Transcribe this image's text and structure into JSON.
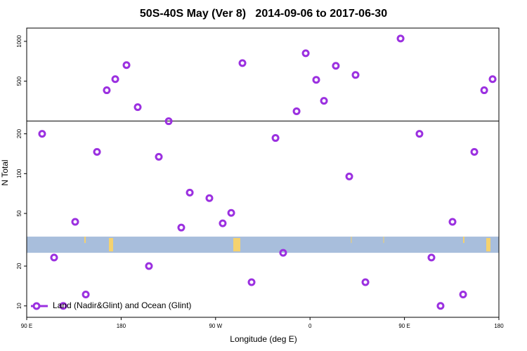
{
  "chart_data": {
    "type": "scatter",
    "title": "50S-40S May (Ver 8)   2014-09-06 to 2017-06-30",
    "xlabel": "Longitude (deg E)",
    "ylabel": "N Total",
    "xlim": [
      90,
      540
    ],
    "xticks": [
      {
        "value": 90,
        "label": "90 E"
      },
      180,
      {
        "value": 270,
        "label": "90 W"
      },
      {
        "value": 360,
        "label": "0"
      },
      {
        "value": 450,
        "label": "90 E"
      },
      {
        "value": 540,
        "label": "180"
      }
    ],
    "ylim": [
      8.2,
      1260
    ],
    "ylog": true,
    "yticks": [
      10,
      20,
      50,
      100,
      200,
      500,
      1000
    ],
    "divider": 250,
    "map_band": {
      "ylim": [
        25.2,
        33.4
      ],
      "color": "#a8bedc",
      "land_color": "#f5d26e"
    },
    "legend": "bottom-left",
    "series": [
      {
        "name": "Land (Nadir&Glint) and Ocean (Glint)",
        "color": "#9b30e0",
        "x": [
          104.7,
          116.1,
          124.8,
          136.2,
          146.3,
          157,
          166.3,
          174.4,
          185.1,
          195.8,
          206.5,
          215.9,
          225.3,
          237.3,
          245.4,
          264.1,
          276.8,
          284.9,
          295.6,
          304.3,
          327.1,
          334.4,
          347.2,
          355.9,
          365.9,
          373.3,
          384.6,
          397.4,
          403.4,
          412.8,
          446.3,
          464.3,
          475.7,
          484.4,
          495.8,
          505.9,
          516.6,
          526,
          534
        ],
        "values": [
          200,
          23.2,
          10,
          43.2,
          12.2,
          146,
          427,
          518,
          661,
          318,
          20,
          134,
          249,
          39.1,
          71.9,
          65.3,
          42.1,
          50.5,
          685,
          15.1,
          186,
          25.2,
          296,
          813,
          512,
          355,
          653,
          95.2,
          557,
          15.1,
          1050,
          200,
          23.2,
          10,
          43.2,
          12.2,
          146,
          427,
          518
        ]
      }
    ]
  }
}
